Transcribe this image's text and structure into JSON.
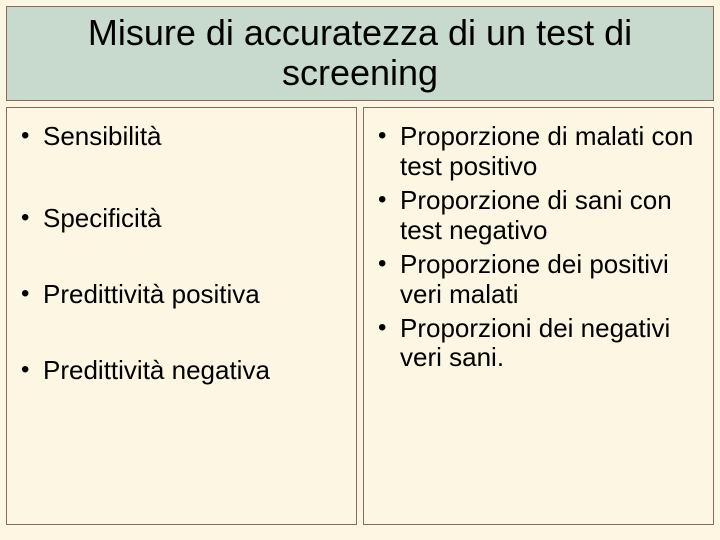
{
  "slide": {
    "background_color": "#fdf6e3",
    "border_color": "#8a6a5a",
    "title_background": "#c8d9ce",
    "title": "Misure di accuratezza di un test di screening",
    "title_fontsize": 36,
    "body_fontsize": 26,
    "left_column": {
      "items": [
        "Sensibilità",
        "Specificità",
        "Predittività positiva",
        "Predittività negativa"
      ]
    },
    "right_column": {
      "items": [
        "Proporzione di malati con test positivo",
        "Proporzione di sani con test negativo",
        "Proporzione dei positivi veri malati",
        "Proporzioni dei negativi veri sani."
      ]
    }
  }
}
